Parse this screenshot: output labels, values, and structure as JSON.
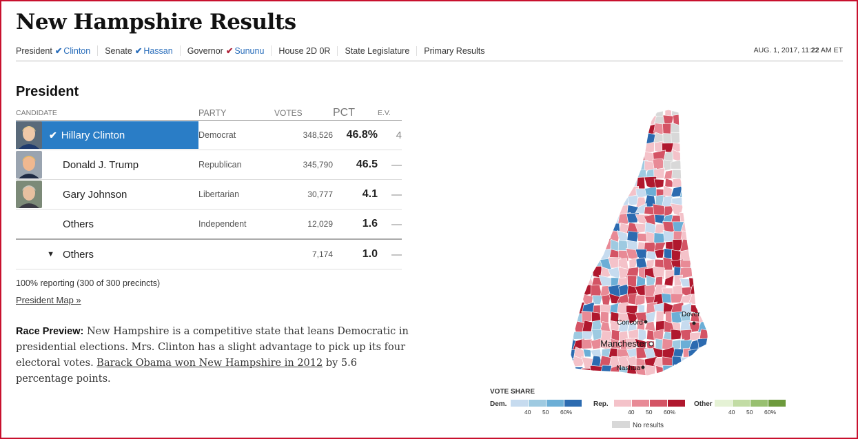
{
  "header": {
    "title": "New Hampshire Results",
    "nav": [
      {
        "label": "President",
        "winner": "Clinton",
        "party": "dem"
      },
      {
        "label": "Senate",
        "winner": "Hassan",
        "party": "dem"
      },
      {
        "label": "Governor",
        "winner": "Sununu",
        "party": "rep"
      },
      {
        "label": "House 2D 0R",
        "winner": "",
        "party": ""
      },
      {
        "label": "State Legislature",
        "winner": "",
        "party": ""
      },
      {
        "label": "Primary Results",
        "winner": "",
        "party": ""
      }
    ],
    "timestamp_prefix": "AUG. 1, 2017, 11:",
    "timestamp_bold": "22",
    "timestamp_suffix": " AM ET"
  },
  "race": {
    "section_title": "President",
    "columns": {
      "candidate": "CANDIDATE",
      "party": "PARTY",
      "votes": "VOTES",
      "pct": "PCT",
      "ev": "E.V."
    },
    "candidates": [
      {
        "name": "Hillary Clinton",
        "party": "Democrat",
        "votes": "348,526",
        "pct": "46.8%",
        "ev": "4",
        "winner": true,
        "photo": "clinton-photo"
      },
      {
        "name": "Donald J. Trump",
        "party": "Republican",
        "votes": "345,790",
        "pct": "46.5",
        "ev": "—",
        "winner": false,
        "photo": "trump-photo"
      },
      {
        "name": "Gary Johnson",
        "party": "Libertarian",
        "votes": "30,777",
        "pct": "4.1",
        "ev": "—",
        "winner": false,
        "photo": "johnson-photo"
      },
      {
        "name": "Others",
        "party": "Independent",
        "votes": "12,029",
        "pct": "1.6",
        "ev": "—",
        "winner": false,
        "photo": ""
      }
    ],
    "others_row": {
      "name": "Others",
      "votes": "7,174",
      "pct": "1.0",
      "ev": "—"
    },
    "reporting": "100% reporting (300 of 300 precincts)",
    "map_link": "President Map »",
    "preview_label": "Race Preview:",
    "preview_text_1": " New Hampshire is a competitive state that leans Democratic in presidential elections. Mrs. Clinton has a slight advantage to pick up its four electoral votes. ",
    "preview_link": "Barack Obama won New Hampshire in 2012",
    "preview_text_2": " by 5.6 percentage points."
  },
  "map": {
    "cities": [
      "Concord",
      "Manchester",
      "Dover",
      "Nashua"
    ],
    "colors": {
      "dem": [
        "#c6dbef",
        "#9ecae1",
        "#6baed6",
        "#2c6bb0"
      ],
      "rep": [
        "#f4c2c9",
        "#e88a96",
        "#d45465",
        "#b0182e"
      ],
      "other": [
        "#e5f2d5",
        "#c2dca4",
        "#98c070",
        "#6d9a3c"
      ],
      "none": "#d8d8d8"
    }
  },
  "legend": {
    "title": "VOTE SHARE",
    "dem_label": "Dem.",
    "rep_label": "Rep.",
    "other_label": "Other",
    "ticks": [
      "40",
      "50",
      "60%"
    ],
    "no_results": "No results"
  }
}
